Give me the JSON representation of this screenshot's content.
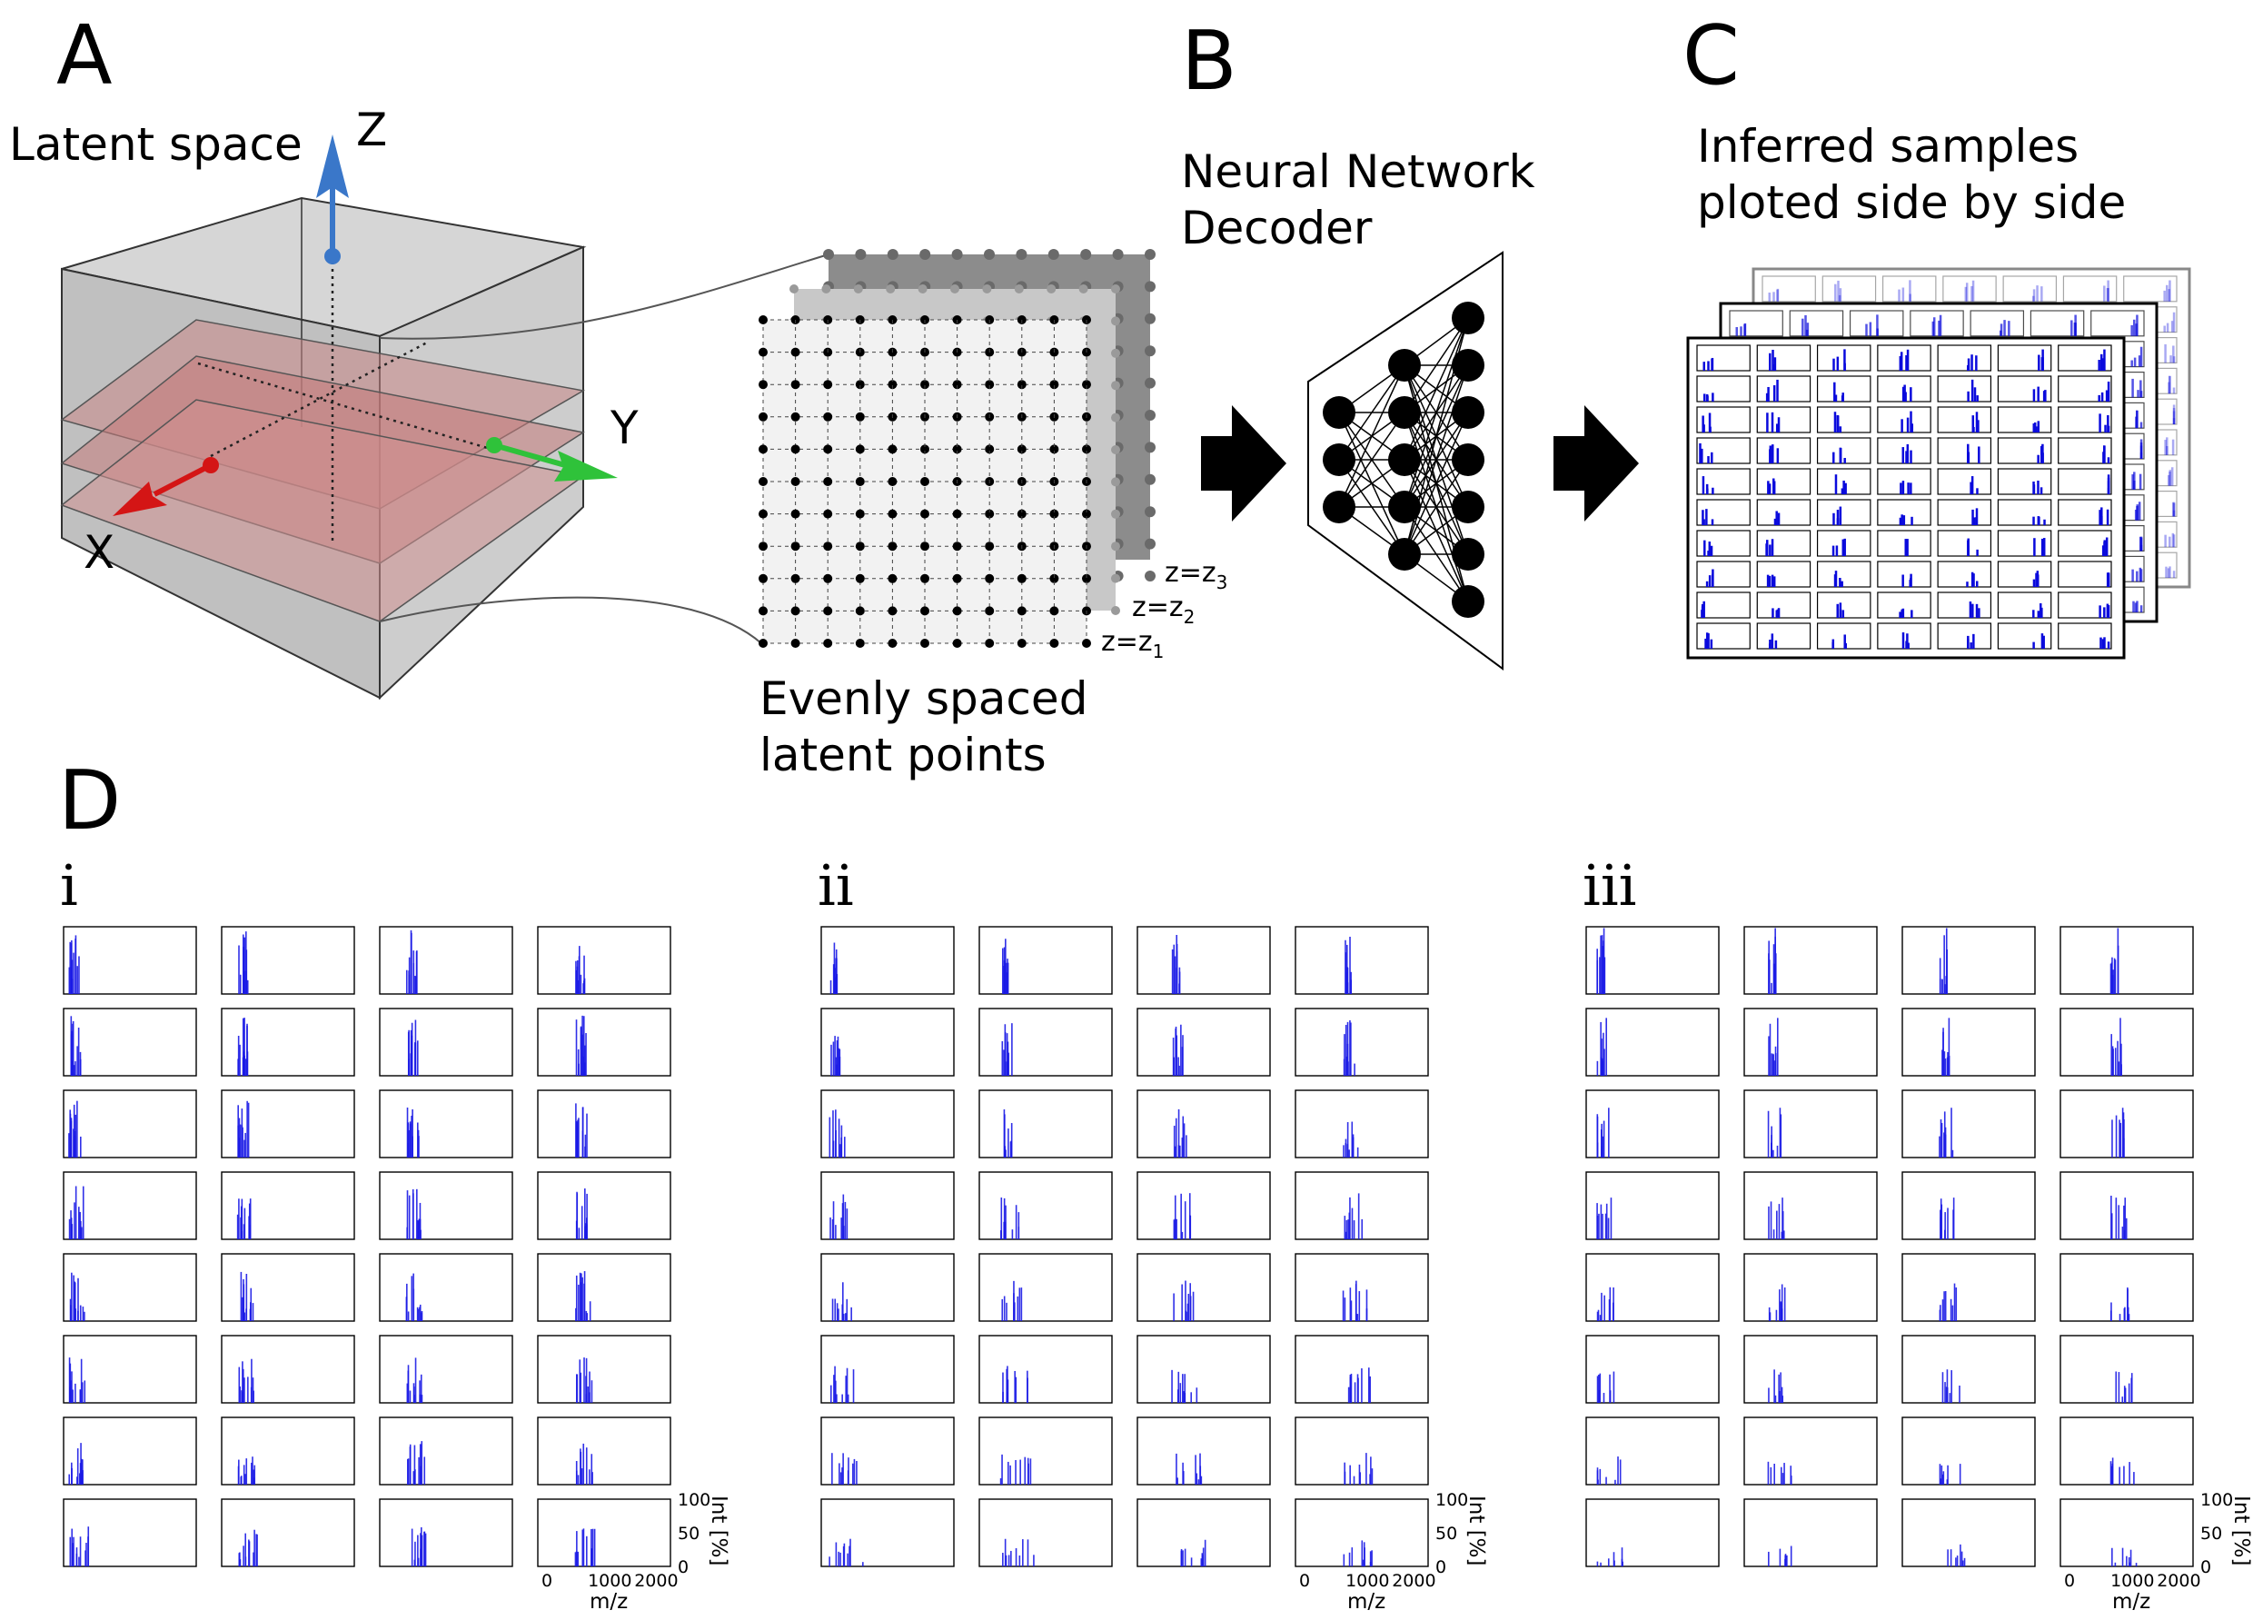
{
  "panel_labels": {
    "a": "A",
    "b": "B",
    "c": "C",
    "d": "D"
  },
  "panel_a": {
    "title": "Latent space",
    "axis_z": "Z",
    "axis_y": "Y",
    "axis_x": "X",
    "colors": {
      "z_axis": "#3a77c9",
      "y_axis": "#2fc23a",
      "x_axis": "#d41515",
      "cube": "#c4c4c4",
      "plane": "#d28d8d"
    }
  },
  "grid": {
    "caption_line1": "Evenly spaced",
    "caption_line2": "latent points",
    "z1": "z=z",
    "z1_sub": "1",
    "z2": "z=z",
    "z2_sub": "2",
    "z3": "z=z",
    "z3_sub": "3",
    "rows": 11,
    "cols": 11
  },
  "panel_b": {
    "title_line1": "Neural Network",
    "title_line2": "Decoder",
    "layers": [
      3,
      5,
      7
    ]
  },
  "panel_c": {
    "title_line1": "Inferred samples",
    "title_line2": "ploted side by side",
    "rows": 10,
    "cols": 7,
    "colors": {
      "spectrum": "#0a0adc"
    }
  },
  "panel_d": {
    "subpanels": [
      "i",
      "ii",
      "iii"
    ],
    "rows": 8,
    "cols": 4,
    "ylabel": "Int [%]",
    "xlabel": "m/z",
    "yticks": [
      "100",
      "50",
      "0"
    ],
    "xticks": [
      "0",
      "1000",
      "2000"
    ],
    "spectrum_color": "#1a1ae6"
  }
}
